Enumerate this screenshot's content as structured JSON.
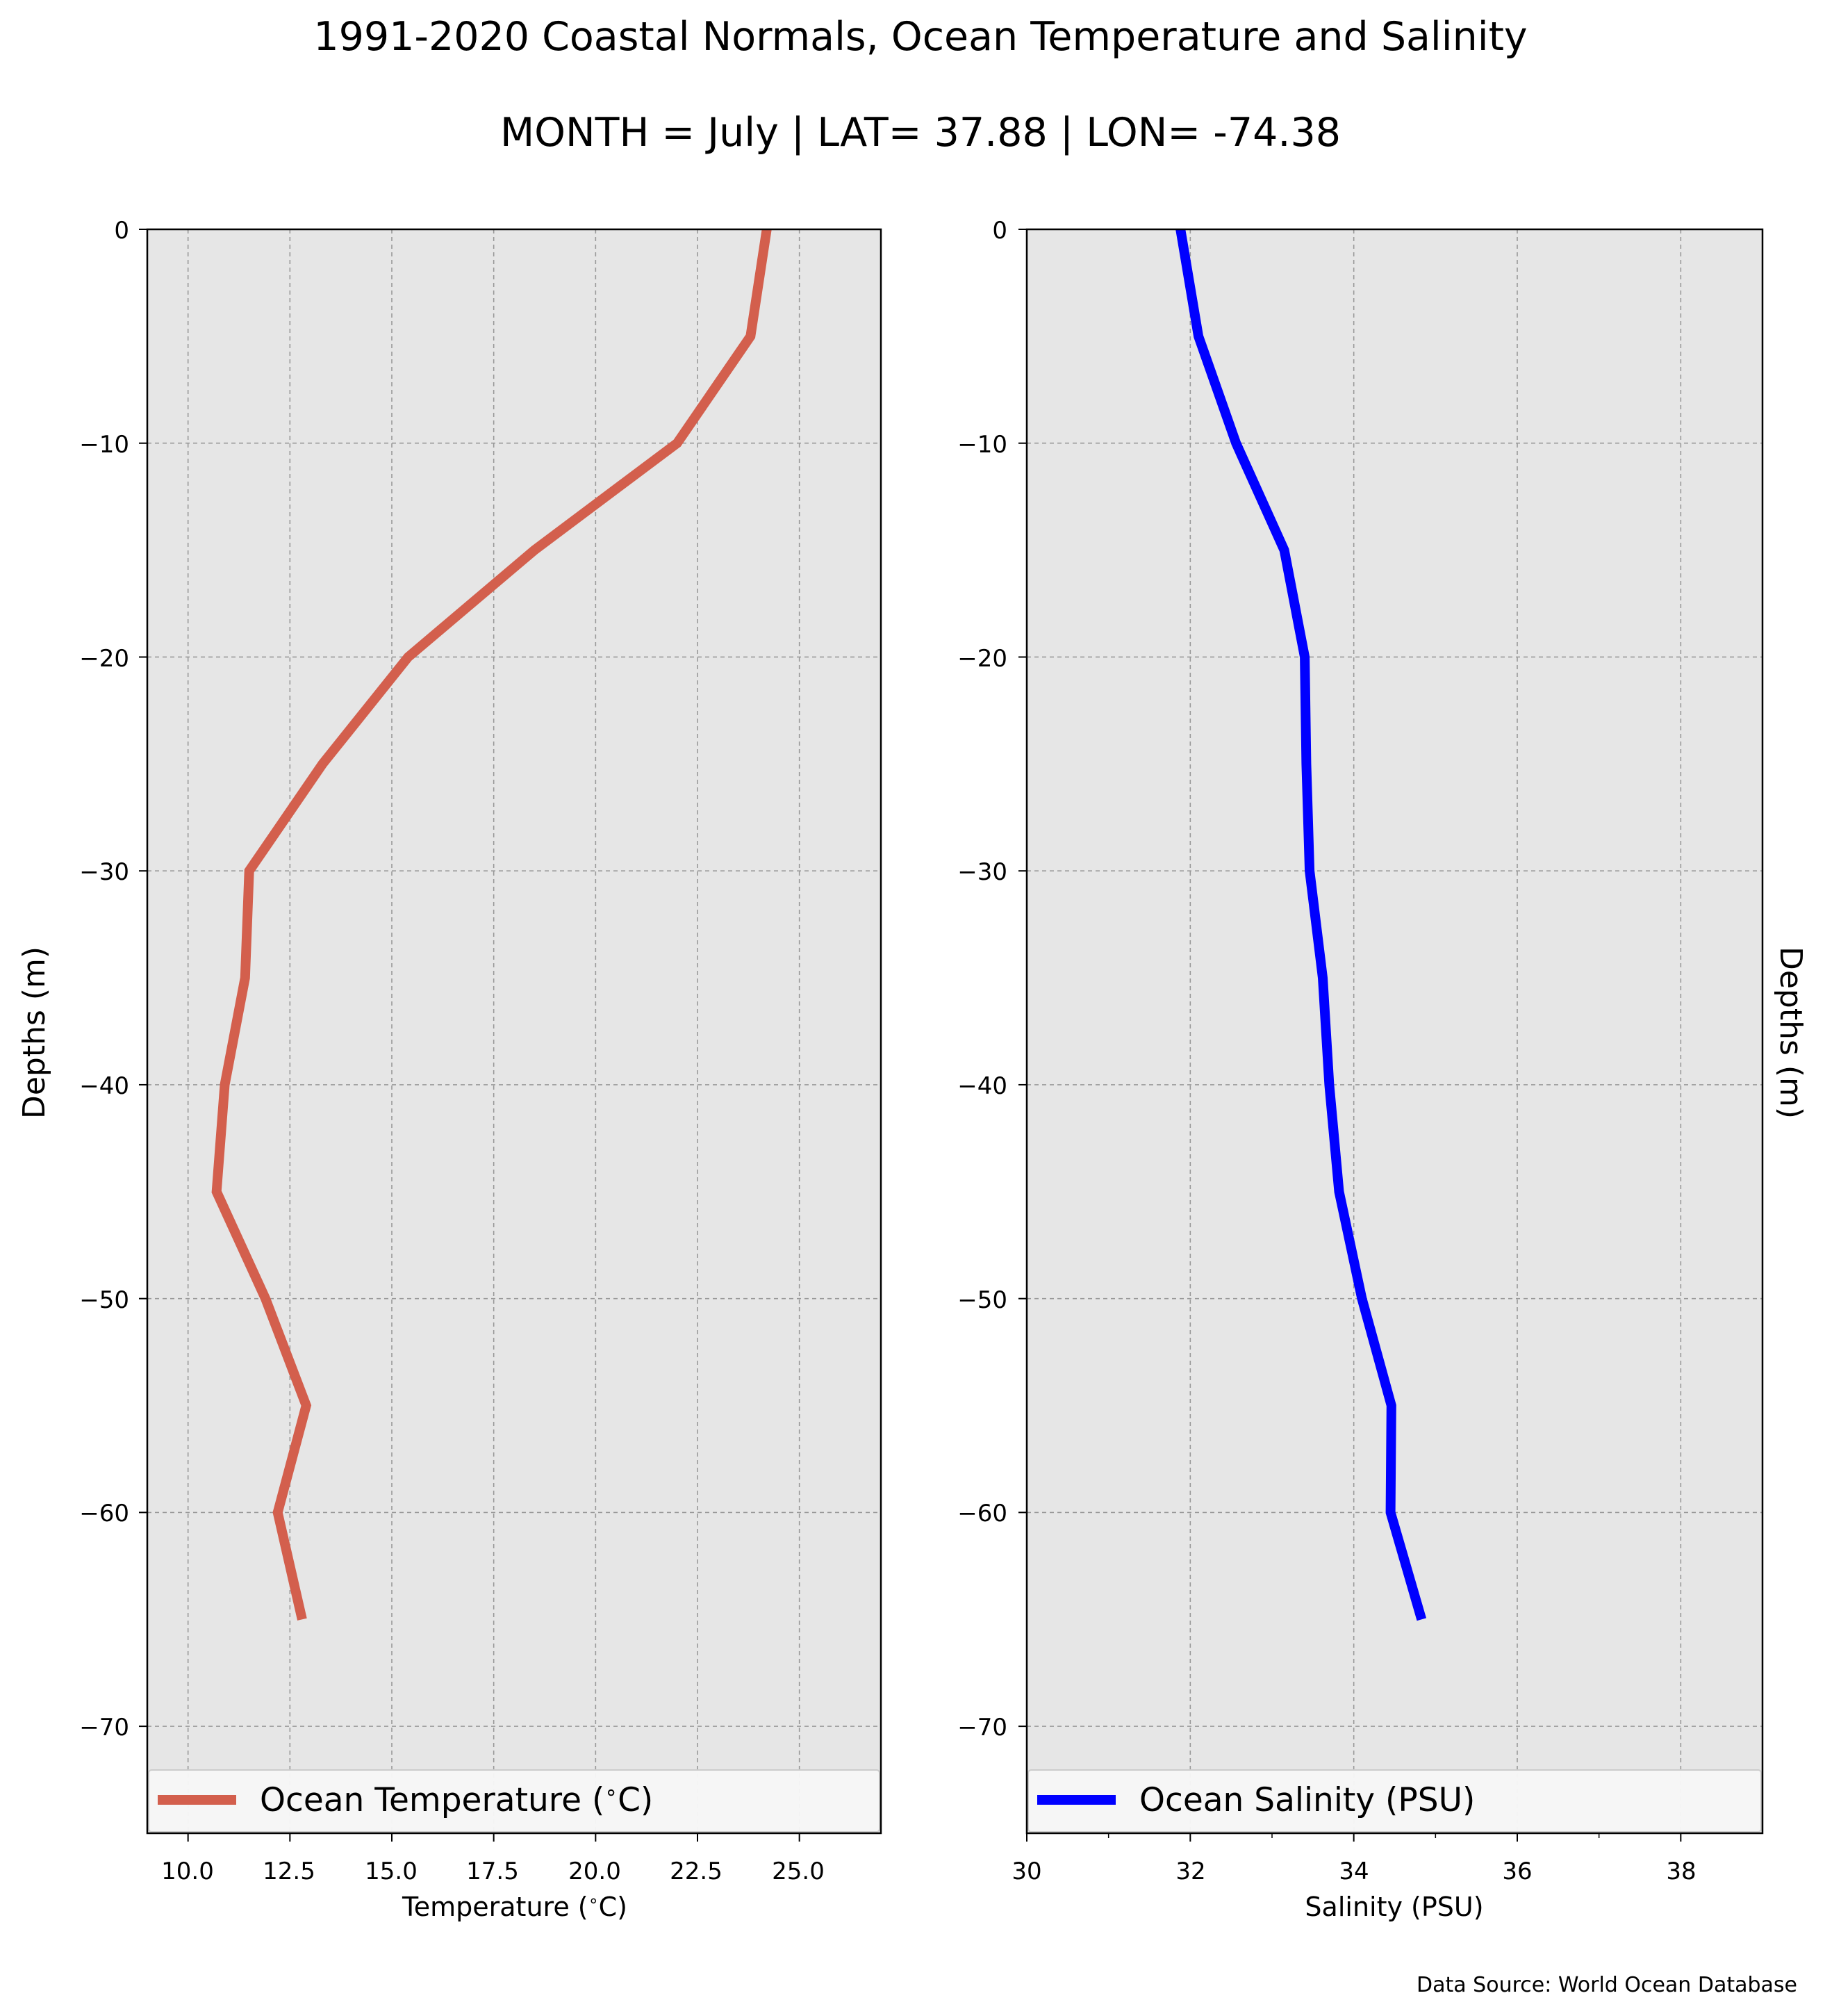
{
  "figure": {
    "title": "1991-2020 Coastal Normals, Ocean Temperature and Salinity",
    "subtitle": "MONTH = July | LAT= 37.88 | LON= -74.38",
    "source_note": "Data Source: World Ocean Database",
    "colors": {
      "panel_bg": "#e6e6e6",
      "grid": "#999999",
      "temperature": "#d35f4d",
      "salinity": "#0000ff"
    }
  },
  "chart_data": [
    {
      "type": "line",
      "grid": true,
      "legend_position": "bottom",
      "xlabel": "Temperature ($^\\circ$C)",
      "ylabel": "Depths (m)",
      "xlim": [
        9.0,
        27.0
      ],
      "ylim": [
        -75,
        0
      ],
      "xticks": [
        "10.0",
        "12.5",
        "15.0",
        "17.5",
        "20.0",
        "22.5",
        "25.0"
      ],
      "yticks": [
        "0",
        "−10",
        "−20",
        "−30",
        "−40",
        "−50",
        "−60",
        "−70"
      ],
      "series": [
        {
          "name": "Ocean Temperature ($^\\circ$C)",
          "color": "#d35f4d",
          "x": [
            24.2,
            23.8,
            22.0,
            18.5,
            15.4,
            13.3,
            11.5,
            11.4,
            10.9,
            10.7,
            11.9,
            12.9,
            12.2,
            12.8
          ],
          "y": [
            0,
            -5,
            -10,
            -15,
            -20,
            -25,
            -30,
            -35,
            -40,
            -45,
            -50,
            -55,
            -60,
            -65
          ]
        }
      ]
    },
    {
      "type": "line",
      "grid": true,
      "legend_position": "bottom",
      "xlabel": "Salinity (PSU)",
      "ylabel": "Depths (m)",
      "xlim": [
        30,
        39
      ],
      "ylim": [
        -75,
        0
      ],
      "xticks": [
        "30",
        "32",
        "34",
        "36",
        "38"
      ],
      "yticks": [
        "0",
        "−10",
        "−20",
        "−30",
        "−40",
        "−50",
        "−60",
        "−70"
      ],
      "series": [
        {
          "name": "Ocean Salinity (PSU)",
          "color": "#0000ff",
          "x": [
            31.88,
            32.1,
            32.56,
            33.15,
            33.4,
            33.42,
            33.46,
            33.62,
            33.7,
            33.82,
            34.1,
            34.46,
            34.45,
            34.83
          ],
          "y": [
            0,
            -5,
            -10,
            -15,
            -20,
            -25,
            -30,
            -35,
            -40,
            -45,
            -50,
            -55,
            -60,
            -65
          ]
        }
      ]
    }
  ]
}
